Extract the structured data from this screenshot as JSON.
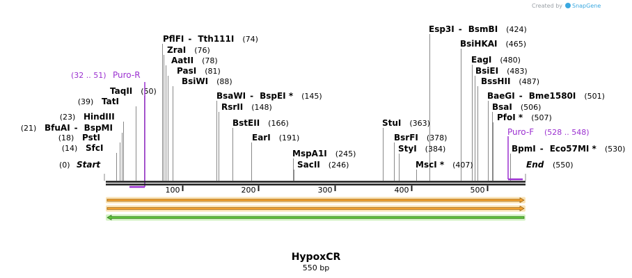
{
  "credit": {
    "prefix": "Created by",
    "brand": "SnapGene"
  },
  "title": "HypoxCR",
  "length_label": "550 bp",
  "sequence_length": 550,
  "ticks": [
    "100",
    "200",
    "300",
    "400",
    "500"
  ],
  "tick_values": [
    100,
    200,
    300,
    400,
    500
  ],
  "sites": [
    {
      "names": [
        "Start"
      ],
      "pos": "(0)",
      "bp": 0,
      "italic": true
    },
    {
      "names": [
        "SfcI"
      ],
      "pos": "(14)",
      "bp": 14
    },
    {
      "names": [
        "PstI"
      ],
      "pos": "(18)",
      "bp": 18
    },
    {
      "names": [
        "BfuAI",
        "BspMI"
      ],
      "pos": "(21)",
      "bp": 21
    },
    {
      "names": [
        "HindIII"
      ],
      "pos": "(23)",
      "bp": 23
    },
    {
      "names": [
        "TatI"
      ],
      "pos": "(39)",
      "bp": 39
    },
    {
      "names": [
        "TaqII"
      ],
      "pos": "(50)",
      "bp": 50
    },
    {
      "names": [
        "PflFI",
        "Tth111I"
      ],
      "pos": "(74)",
      "bp": 74
    },
    {
      "names": [
        "ZraI"
      ],
      "pos": "(76)",
      "bp": 76
    },
    {
      "names": [
        "AatII"
      ],
      "pos": "(78)",
      "bp": 78
    },
    {
      "names": [
        "PasI"
      ],
      "pos": "(81)",
      "bp": 81
    },
    {
      "names": [
        "BsiWI"
      ],
      "pos": "(88)",
      "bp": 88
    },
    {
      "names": [
        "BsaWI",
        "BspEI *"
      ],
      "pos": "(145)",
      "bp": 145
    },
    {
      "names": [
        "RsrII"
      ],
      "pos": "(148)",
      "bp": 148
    },
    {
      "names": [
        "BstEII"
      ],
      "pos": "(166)",
      "bp": 166
    },
    {
      "names": [
        "EarI"
      ],
      "pos": "(191)",
      "bp": 191
    },
    {
      "names": [
        "MspA1I"
      ],
      "pos": "(245)",
      "bp": 245
    },
    {
      "names": [
        "SacII"
      ],
      "pos": "(246)",
      "bp": 246
    },
    {
      "names": [
        "StuI"
      ],
      "pos": "(363)",
      "bp": 363
    },
    {
      "names": [
        "BsrFI"
      ],
      "pos": "(378)",
      "bp": 378
    },
    {
      "names": [
        "StyI"
      ],
      "pos": "(384)",
      "bp": 384
    },
    {
      "names": [
        "MscI *"
      ],
      "pos": "(407)",
      "bp": 407
    },
    {
      "names": [
        "Esp3I",
        "BsmBI"
      ],
      "pos": "(424)",
      "bp": 424
    },
    {
      "names": [
        "BsiHKAI"
      ],
      "pos": "(465)",
      "bp": 465
    },
    {
      "names": [
        "EagI"
      ],
      "pos": "(480)",
      "bp": 480
    },
    {
      "names": [
        "BsiEI"
      ],
      "pos": "(483)",
      "bp": 483
    },
    {
      "names": [
        "BssHII"
      ],
      "pos": "(487)",
      "bp": 487
    },
    {
      "names": [
        "BaeGI",
        "Bme1580I"
      ],
      "pos": "(501)",
      "bp": 501
    },
    {
      "names": [
        "BsaI"
      ],
      "pos": "(506)",
      "bp": 506
    },
    {
      "names": [
        "PfoI *"
      ],
      "pos": "(507)",
      "bp": 507
    },
    {
      "names": [
        "BpmI",
        "Eco57MI *"
      ],
      "pos": "(530)",
      "bp": 530
    },
    {
      "names": [
        "End"
      ],
      "pos": "(550)",
      "bp": 550,
      "italic": true
    }
  ],
  "primers": [
    {
      "name": "Puro-R",
      "range": "(32 .. 51)",
      "start": 32,
      "end": 51,
      "strand": "reverse"
    },
    {
      "name": "Puro-F",
      "range": "(528 .. 548)",
      "start": 528,
      "end": 548,
      "strand": "forward"
    }
  ],
  "features": [
    {
      "strand": "forward",
      "start": 1,
      "end": 550,
      "fill": "#f0a030",
      "glow": "#fbe3b5"
    },
    {
      "strand": "forward",
      "start": 1,
      "end": 550,
      "fill": "#f0a030",
      "glow": "#fbe3b5"
    },
    {
      "strand": "reverse",
      "start": 1,
      "end": 550,
      "fill": "#5cc038",
      "glow": "#d3f2c3"
    }
  ],
  "colors": {
    "backbone": "#1a1a1a",
    "primer": "#9b30d0",
    "leader": "#888888",
    "credit_logo": "#3aa8e0"
  }
}
